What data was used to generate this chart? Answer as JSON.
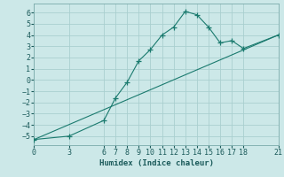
{
  "xlabel": "Humidex (Indice chaleur)",
  "ylabel": "",
  "background_color": "#cce8e8",
  "grid_color": "#aacfcf",
  "line_color": "#1a7a6e",
  "line1_x": [
    0,
    3,
    6,
    7,
    8,
    9,
    10,
    11,
    12,
    13,
    14,
    15,
    16,
    17,
    18,
    21
  ],
  "line1_y": [
    -5.3,
    -5.0,
    -3.6,
    -1.6,
    -0.2,
    1.7,
    2.7,
    4.0,
    4.7,
    6.1,
    5.8,
    4.7,
    3.3,
    3.5,
    2.8,
    4.0
  ],
  "line2_x": [
    0,
    21
  ],
  "line2_y": [
    -5.3,
    4.0
  ],
  "xlim": [
    0,
    21
  ],
  "ylim": [
    -5.8,
    6.8
  ],
  "yticks": [
    -5,
    -4,
    -3,
    -2,
    -1,
    0,
    1,
    2,
    3,
    4,
    5,
    6
  ],
  "xticks": [
    0,
    3,
    6,
    7,
    8,
    9,
    10,
    11,
    12,
    13,
    14,
    15,
    16,
    17,
    18,
    21
  ],
  "label_fontsize": 6.5,
  "tick_fontsize": 6
}
